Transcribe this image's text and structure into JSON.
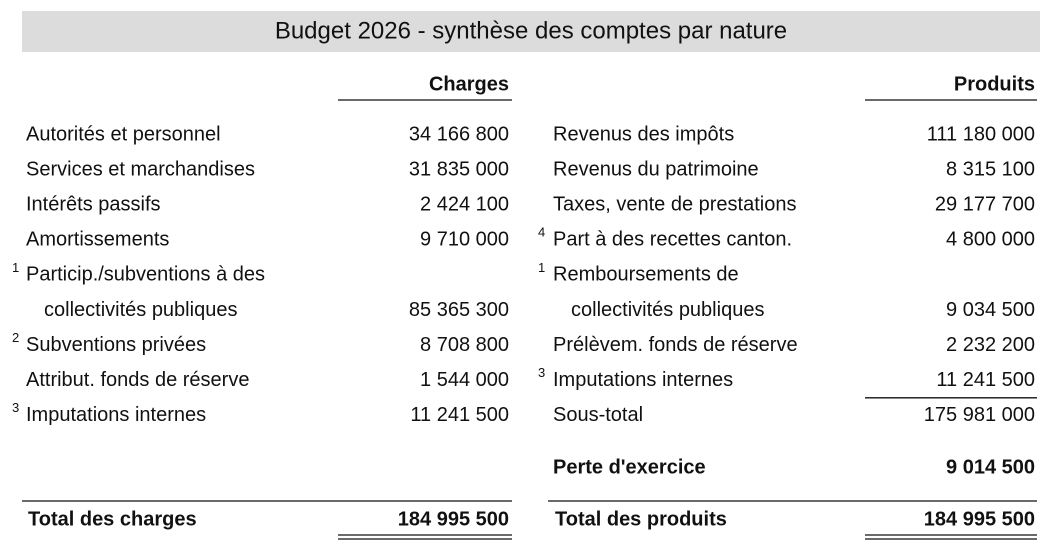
{
  "title": "Budget 2026 - synthèse des comptes par nature",
  "charges": {
    "header": "Charges",
    "rows": [
      {
        "label": "Autorités et personnel",
        "amount": "34 166 800"
      },
      {
        "label": "Services et marchandises",
        "amount": "31 835 000"
      },
      {
        "label": "Intérêts passifs",
        "amount": "2 424 100"
      },
      {
        "label": "Amortissements",
        "amount": "9 710 000"
      },
      {
        "note": "1",
        "label": "Particip./subventions à des",
        "continuation": "collectivités publiques",
        "amount": "85 365 300"
      },
      {
        "note": "2",
        "label": "Subventions privées",
        "amount": "8 708 800"
      },
      {
        "label": "Attribut. fonds de réserve",
        "amount": "1 544 000"
      },
      {
        "note": "3",
        "label": "Imputations internes",
        "amount": "11 241 500"
      }
    ],
    "total": {
      "label": "Total des charges",
      "amount": "184 995 500"
    }
  },
  "produits": {
    "header": "Produits",
    "rows": [
      {
        "label": "Revenus des impôts",
        "amount": "111 180 000"
      },
      {
        "label": "Revenus du patrimoine",
        "amount": "8 315 100"
      },
      {
        "label": "Taxes, vente de prestations",
        "amount": "29 177 700"
      },
      {
        "note": "4",
        "label": "Part à des recettes canton.",
        "amount": "4 800 000"
      },
      {
        "note": "1",
        "label": "Remboursements de",
        "continuation": "collectivités publiques",
        "amount": "9 034 500"
      },
      {
        "label": "Prélèvem. fonds de réserve",
        "amount": "2 232 200"
      },
      {
        "note": "3",
        "label": "Imputations internes",
        "amount": "11 241 500"
      }
    ],
    "subtotal": {
      "label": "Sous-total",
      "amount": "175 981 000"
    },
    "result": {
      "label": "Perte d'exercice",
      "amount": "9 014 500"
    },
    "total": {
      "label": "Total des produits",
      "amount": "184 995 500"
    }
  }
}
